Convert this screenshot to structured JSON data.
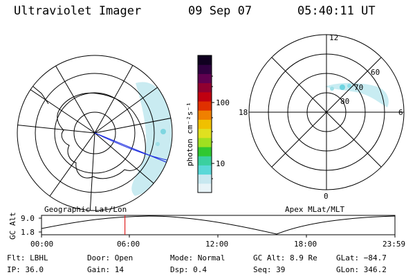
{
  "header": {
    "title": "Ultraviolet Imager",
    "date": "09 Sep 07",
    "time": "05:40:11 UT"
  },
  "left_map": {
    "caption": "Geographic Lat/Lon"
  },
  "right_map": {
    "caption": "Apex MLat/MLT",
    "mlt_labels": {
      "top": "12",
      "right": "6",
      "bottom": "0",
      "left": "18"
    },
    "lat_labels": [
      "80",
      "70",
      "60"
    ]
  },
  "colorbar": {
    "unit_label": "photon cm⁻²s⁻¹",
    "ticks": [
      "100",
      "10"
    ],
    "colors": [
      "#e8f4f8",
      "#c8e8f0",
      "#5ad8d8",
      "#3ad0a0",
      "#30c830",
      "#a0e020",
      "#e0e020",
      "#f0c000",
      "#f08000",
      "#e03000",
      "#c00010",
      "#900030",
      "#600050",
      "#300040",
      "#100020"
    ]
  },
  "altitude_panel": {
    "axis_label": "GC Alt",
    "y_ticks": [
      "9.0",
      "1.8"
    ],
    "x_ticks": [
      "00:00",
      "06:00",
      "12:00",
      "18:00",
      "23:59"
    ],
    "marker_time_fraction": 0.236,
    "marker_color": "#e02020"
  },
  "info": {
    "flt": "Flt: LBHL",
    "door": "Door: Open",
    "mode": "Mode: Normal",
    "gc_alt": "GC Alt: 8.9 Re",
    "glat": "GLat: −84.7",
    "ip": "IP: 36.0",
    "gain": "Gain: 14",
    "dsp": "Dsp:    0.4",
    "seq": "Seq: 39",
    "glon": "GLon: 346.2"
  }
}
